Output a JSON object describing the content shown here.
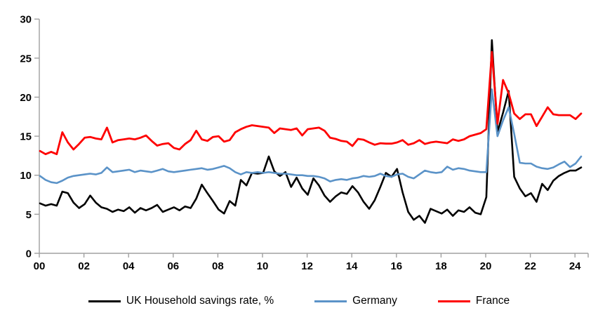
{
  "chart_data": {
    "type": "line",
    "title": "",
    "frequency": "quarterly",
    "x_start": "2000 Q1",
    "x_end": "2024 Q2",
    "x_tick_labels": [
      "00",
      "02",
      "04",
      "06",
      "08",
      "10",
      "12",
      "14",
      "16",
      "18",
      "20",
      "22",
      "24"
    ],
    "y_ticks": [
      0,
      5,
      10,
      15,
      20,
      25,
      30
    ],
    "ylim": [
      0,
      30
    ],
    "grid": "off",
    "legend_position": "bottom",
    "axis_color": "#a0a0a0",
    "tick_label_color": "#000000",
    "series": [
      {
        "name": "UK Household savings rate, %",
        "color": "#000000",
        "width": 2.6,
        "values": [
          6.4,
          6.1,
          6.3,
          6.1,
          7.9,
          7.7,
          6.5,
          5.8,
          6.3,
          7.4,
          6.5,
          5.9,
          5.7,
          5.3,
          5.6,
          5.4,
          5.9,
          5.2,
          5.8,
          5.5,
          5.8,
          6.2,
          5.3,
          5.6,
          5.9,
          5.5,
          6.0,
          5.8,
          7.0,
          8.8,
          7.7,
          6.7,
          5.6,
          5.1,
          6.7,
          6.1,
          9.4,
          8.7,
          10.3,
          10.2,
          10.3,
          12.4,
          10.5,
          9.9,
          10.4,
          8.5,
          9.7,
          8.3,
          7.5,
          9.6,
          8.7,
          7.4,
          6.6,
          7.3,
          7.8,
          7.6,
          8.6,
          7.8,
          6.6,
          5.7,
          6.8,
          8.5,
          10.3,
          9.8,
          10.8,
          7.8,
          5.3,
          4.3,
          4.8,
          3.9,
          5.7,
          5.4,
          5.1,
          5.6,
          4.8,
          5.5,
          5.3,
          5.9,
          5.2,
          5.0,
          7.2,
          27.3,
          15.5,
          18.0,
          20.8,
          9.8,
          8.3,
          7.3,
          7.7,
          6.6,
          8.9,
          8.1,
          9.3,
          9.9,
          10.3,
          10.6,
          10.6,
          11.0
        ]
      },
      {
        "name": "Germany",
        "color": "#5b93c8",
        "width": 2.6,
        "values": [
          9.9,
          9.4,
          9.1,
          9.0,
          9.3,
          9.7,
          9.9,
          10.0,
          10.1,
          10.2,
          10.1,
          10.3,
          11.0,
          10.4,
          10.5,
          10.6,
          10.7,
          10.4,
          10.6,
          10.5,
          10.4,
          10.6,
          10.8,
          10.5,
          10.4,
          10.5,
          10.6,
          10.7,
          10.8,
          10.9,
          10.7,
          10.8,
          11.0,
          11.2,
          10.9,
          10.4,
          10.1,
          10.4,
          10.3,
          10.4,
          10.3,
          10.4,
          10.3,
          10.2,
          10.2,
          10.1,
          10.0,
          10.0,
          9.9,
          9.9,
          9.8,
          9.6,
          9.2,
          9.4,
          9.5,
          9.4,
          9.6,
          9.7,
          9.9,
          9.8,
          9.9,
          10.2,
          9.9,
          9.8,
          10.1,
          10.2,
          9.8,
          9.6,
          10.1,
          10.6,
          10.4,
          10.3,
          10.4,
          11.1,
          10.7,
          10.9,
          10.8,
          10.6,
          10.5,
          10.4,
          10.4,
          21.0,
          15.0,
          17.0,
          18.7,
          15.3,
          11.6,
          11.5,
          11.5,
          11.1,
          10.9,
          10.8,
          11.0,
          11.4,
          11.75,
          11.05,
          11.5,
          12.4
        ]
      },
      {
        "name": "France",
        "color": "#fe0000",
        "width": 2.8,
        "values": [
          13.1,
          12.7,
          13.0,
          12.7,
          15.5,
          14.2,
          13.3,
          14.0,
          14.8,
          14.9,
          14.7,
          14.6,
          16.1,
          14.2,
          14.5,
          14.6,
          14.7,
          14.6,
          14.8,
          15.1,
          14.4,
          13.8,
          14.0,
          14.1,
          13.5,
          13.3,
          14.0,
          14.5,
          15.7,
          14.6,
          14.4,
          14.9,
          15.0,
          14.3,
          14.5,
          15.5,
          15.9,
          16.2,
          16.4,
          16.3,
          16.2,
          16.1,
          15.4,
          16.0,
          15.9,
          15.8,
          16.0,
          15.1,
          15.9,
          16.0,
          16.1,
          15.7,
          14.8,
          14.65,
          14.4,
          14.3,
          13.75,
          14.65,
          14.55,
          14.2,
          13.9,
          14.1,
          14.05,
          14.05,
          14.2,
          14.5,
          13.9,
          14.1,
          14.5,
          14.0,
          14.2,
          14.3,
          14.2,
          14.1,
          14.6,
          14.4,
          14.6,
          15.0,
          15.2,
          15.4,
          15.9,
          25.8,
          16.6,
          22.2,
          20.5,
          17.9,
          17.2,
          17.8,
          17.8,
          16.3,
          17.5,
          18.7,
          17.8,
          17.7,
          17.7,
          17.7,
          17.2,
          17.9
        ]
      }
    ]
  },
  "legend": {
    "items": [
      {
        "label": "UK Household savings rate, %"
      },
      {
        "label": "Germany"
      },
      {
        "label": "France"
      }
    ]
  }
}
